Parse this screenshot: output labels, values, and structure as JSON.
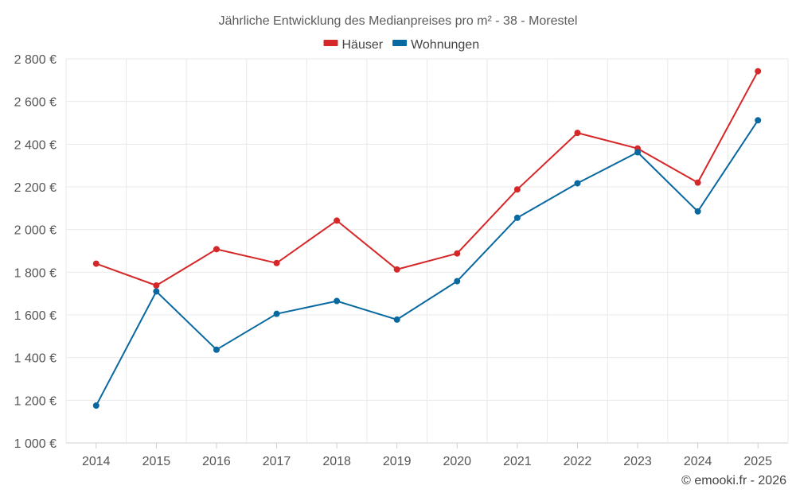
{
  "chart_data": {
    "type": "line",
    "title": "Jährliche Entwicklung des Medianpreises pro m² - 38 - Morestel",
    "xlabel": "",
    "ylabel": "",
    "categories": [
      "2014",
      "2015",
      "2016",
      "2017",
      "2018",
      "2019",
      "2020",
      "2021",
      "2022",
      "2023",
      "2024",
      "2025"
    ],
    "ylim": [
      1000,
      2800
    ],
    "yticks": [
      1000,
      1200,
      1400,
      1600,
      1800,
      2000,
      2200,
      2400,
      2600,
      2800
    ],
    "ytick_labels": [
      "1 000 €",
      "1 200 €",
      "1 400 €",
      "1 600 €",
      "1 800 €",
      "2 000 €",
      "2 200 €",
      "2 400 €",
      "2 600 €",
      "2 800 €"
    ],
    "grid": true,
    "legend_position": "top-center",
    "series": [
      {
        "name": "Häuser",
        "color": "#d62728",
        "values": [
          1840,
          1738,
          1908,
          1843,
          2042,
          1813,
          1888,
          2188,
          2453,
          2380,
          2220,
          2742
        ]
      },
      {
        "name": "Wohnungen",
        "color": "#0868a0",
        "values": [
          1175,
          1710,
          1437,
          1605,
          1665,
          1578,
          1758,
          2055,
          2217,
          2362,
          2085,
          2512
        ]
      }
    ]
  },
  "credit": "© emooki.fr - 2026"
}
